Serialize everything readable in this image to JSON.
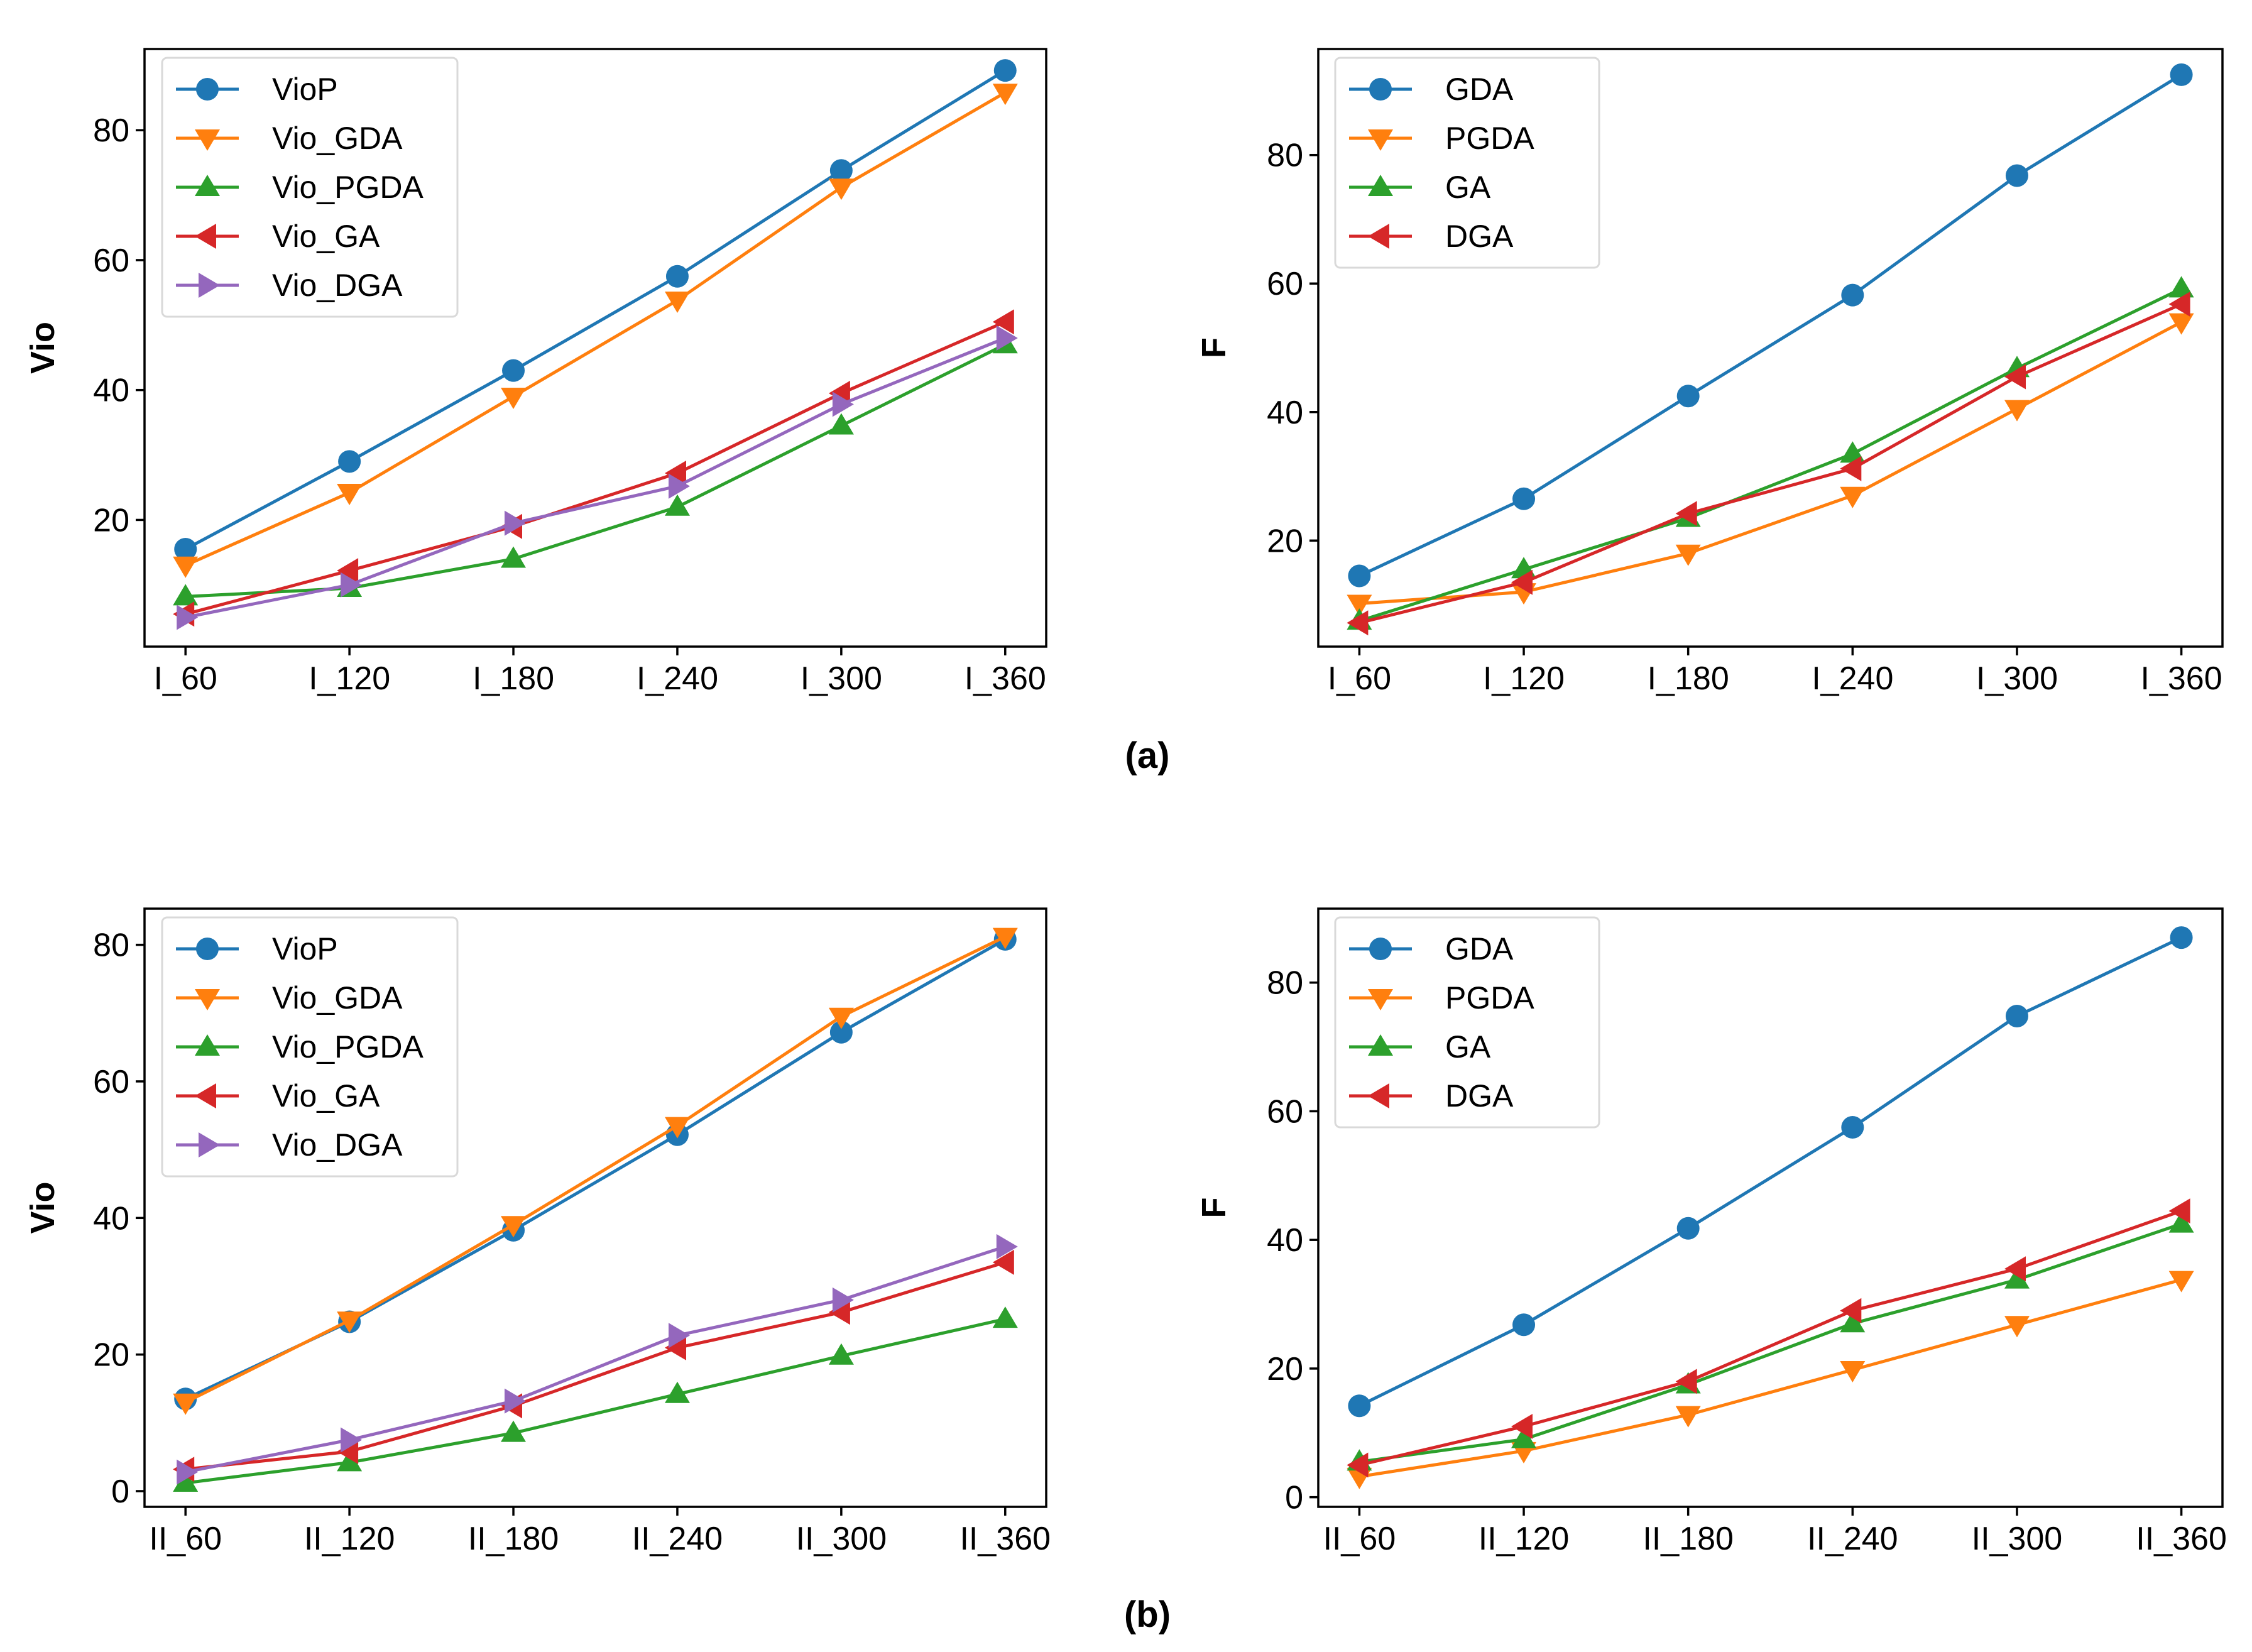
{
  "colors": {
    "blue": "#1f77b4",
    "orange": "#ff7f0e",
    "green": "#2ca02c",
    "red": "#d62728",
    "purple": "#9467bd"
  },
  "captions": [
    "(a)",
    "(b)"
  ],
  "chart_data": [
    {
      "type": "line",
      "title": "",
      "xlabel": "",
      "ylabel": "Vio",
      "categories": [
        "I_60",
        "I_120",
        "I_180",
        "I_240",
        "I_300",
        "I_360"
      ],
      "ylim": [
        0.5,
        92.5
      ],
      "yticks": [
        20,
        40,
        60,
        80
      ],
      "legend": "top-left",
      "grid": false,
      "series": [
        {
          "name": "VioP",
          "color": "blue",
          "marker": "circle",
          "values": [
            15.5,
            29.0,
            43.0,
            57.5,
            73.8,
            89.2
          ]
        },
        {
          "name": "Vio_GDA",
          "color": "orange",
          "marker": "triangle-down",
          "values": [
            13.0,
            24.2,
            39.0,
            53.8,
            71.2,
            85.8
          ]
        },
        {
          "name": "Vio_PGDA",
          "color": "green",
          "marker": "triangle-up",
          "values": [
            8.2,
            9.5,
            14.0,
            22.0,
            34.5,
            47.0
          ]
        },
        {
          "name": "Vio_GA",
          "color": "red",
          "marker": "triangle-left",
          "values": [
            5.5,
            12.2,
            19.0,
            27.2,
            39.5,
            50.5
          ]
        },
        {
          "name": "Vio_DGA",
          "color": "purple",
          "marker": "triangle-right",
          "values": [
            5.0,
            10.0,
            19.5,
            25.2,
            37.8,
            48.0
          ]
        }
      ]
    },
    {
      "type": "line",
      "title": "",
      "xlabel": "",
      "ylabel": "F",
      "categories": [
        "I_60",
        "I_120",
        "I_180",
        "I_240",
        "I_300",
        "I_360"
      ],
      "ylim": [
        3.5,
        96.5
      ],
      "yticks": [
        20,
        40,
        60,
        80
      ],
      "legend": "top-left",
      "grid": false,
      "series": [
        {
          "name": "GDA",
          "color": "blue",
          "marker": "circle",
          "values": [
            14.5,
            26.5,
            42.5,
            58.2,
            76.8,
            92.5
          ]
        },
        {
          "name": "PGDA",
          "color": "orange",
          "marker": "triangle-down",
          "values": [
            10.2,
            12.0,
            18.0,
            27.0,
            40.5,
            54.0
          ]
        },
        {
          "name": "GA",
          "color": "green",
          "marker": "triangle-up",
          "values": [
            7.5,
            15.5,
            23.5,
            33.5,
            46.8,
            59.2
          ]
        },
        {
          "name": "DGA",
          "color": "red",
          "marker": "triangle-left",
          "values": [
            7.2,
            13.5,
            24.2,
            31.2,
            45.5,
            56.8
          ]
        }
      ]
    },
    {
      "type": "line",
      "title": "",
      "xlabel": "",
      "ylabel": "Vio",
      "categories": [
        "II_60",
        "II_120",
        "II_180",
        "II_240",
        "II_300",
        "II_360"
      ],
      "ylim": [
        -2.3,
        85.3
      ],
      "yticks": [
        0,
        20,
        40,
        60,
        80
      ],
      "legend": "top-left",
      "grid": false,
      "series": [
        {
          "name": "VioP",
          "color": "blue",
          "marker": "circle",
          "values": [
            13.5,
            24.8,
            38.2,
            52.2,
            67.2,
            80.8
          ]
        },
        {
          "name": "Vio_GDA",
          "color": "orange",
          "marker": "triangle-down",
          "values": [
            13.0,
            25.0,
            39.0,
            53.5,
            69.5,
            81.2
          ]
        },
        {
          "name": "Vio_PGDA",
          "color": "green",
          "marker": "triangle-up",
          "values": [
            1.2,
            4.2,
            8.5,
            14.2,
            19.8,
            25.2
          ]
        },
        {
          "name": "Vio_GA",
          "color": "red",
          "marker": "triangle-left",
          "values": [
            3.2,
            5.8,
            12.5,
            21.0,
            26.2,
            33.5
          ]
        },
        {
          "name": "Vio_DGA",
          "color": "purple",
          "marker": "triangle-right",
          "values": [
            2.8,
            7.5,
            13.2,
            22.8,
            28.0,
            35.8
          ]
        }
      ]
    },
    {
      "type": "line",
      "title": "",
      "xlabel": "",
      "ylabel": "F",
      "categories": [
        "II_60",
        "II_120",
        "II_180",
        "II_240",
        "II_300",
        "II_360"
      ],
      "ylim": [
        -1.5,
        91.5
      ],
      "yticks": [
        0,
        20,
        40,
        60,
        80
      ],
      "legend": "top-left",
      "grid": false,
      "series": [
        {
          "name": "GDA",
          "color": "blue",
          "marker": "circle",
          "values": [
            14.2,
            26.8,
            41.8,
            57.5,
            74.8,
            87.0
          ]
        },
        {
          "name": "PGDA",
          "color": "orange",
          "marker": "triangle-down",
          "values": [
            3.2,
            7.2,
            12.8,
            19.8,
            26.8,
            33.8
          ]
        },
        {
          "name": "GA",
          "color": "green",
          "marker": "triangle-up",
          "values": [
            5.5,
            9.0,
            17.5,
            27.0,
            33.8,
            42.5
          ]
        },
        {
          "name": "DGA",
          "color": "red",
          "marker": "triangle-left",
          "values": [
            5.0,
            11.0,
            18.0,
            29.0,
            35.5,
            44.5
          ]
        }
      ]
    }
  ]
}
